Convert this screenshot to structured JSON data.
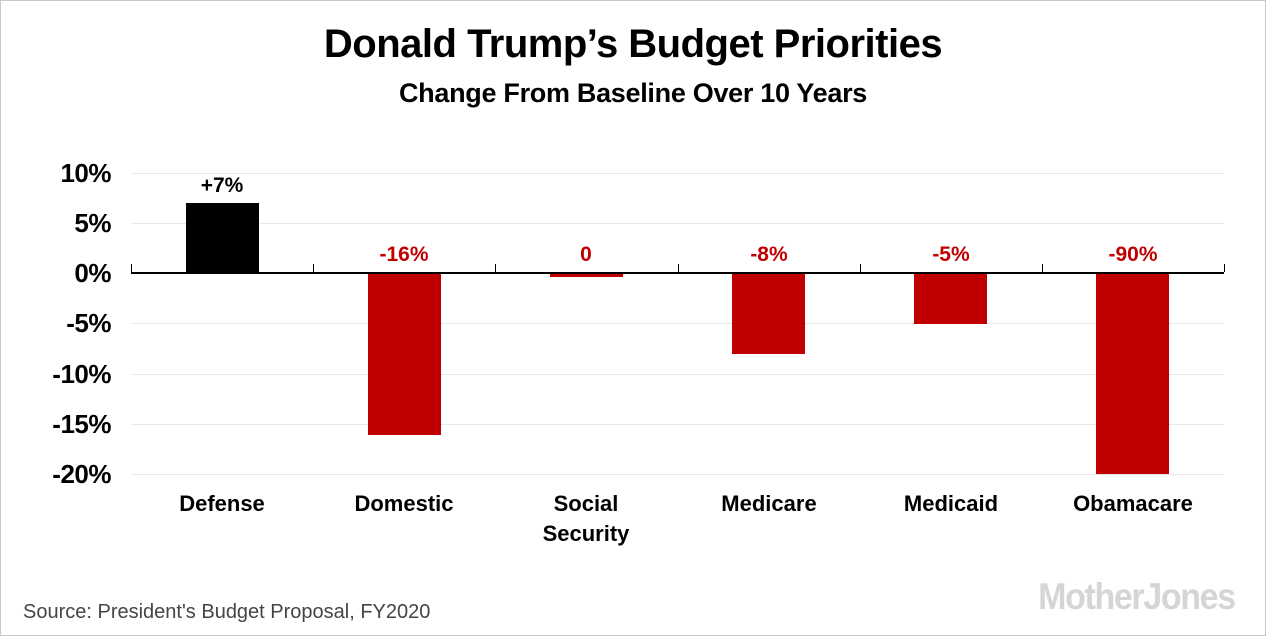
{
  "title": "Donald Trump’s Budget Priorities",
  "subtitle": "Change From Baseline Over 10 Years",
  "source_note": "Source: President's Budget Proposal, FY2020",
  "logo_text": "MotherJones",
  "colors": {
    "positive_bar": "#000000",
    "negative_bar": "#c00000",
    "positive_label": "#000000",
    "negative_label": "#c00000",
    "gridline": "#e7e7e7",
    "axis": "#000000",
    "source_text": "#454545",
    "logo": "#d5d5d5"
  },
  "chart_data": {
    "type": "bar",
    "title": "Donald Trump’s Budget Priorities",
    "subtitle": "Change From Baseline Over 10 Years",
    "categories": [
      "Defense",
      "Domestic",
      "Social Security",
      "Medicare",
      "Medicaid",
      "Obamacare"
    ],
    "values": [
      7,
      -16,
      0,
      -8,
      -5,
      -90
    ],
    "value_labels": [
      "+7%",
      "-16%",
      "0",
      "-8%",
      "-5%",
      "-90%"
    ],
    "xlabel": "",
    "ylabel": "",
    "ylim": [
      -20,
      10
    ],
    "yticks": [
      10,
      5,
      0,
      -5,
      -10,
      -15,
      -20
    ],
    "ytick_labels": [
      "10%",
      "5%",
      "0%",
      "-5%",
      "-10%",
      "-15%",
      "-20%"
    ],
    "grid": true,
    "legend": false,
    "note": "Obamacare bar is clipped at the -20% axis limit"
  }
}
